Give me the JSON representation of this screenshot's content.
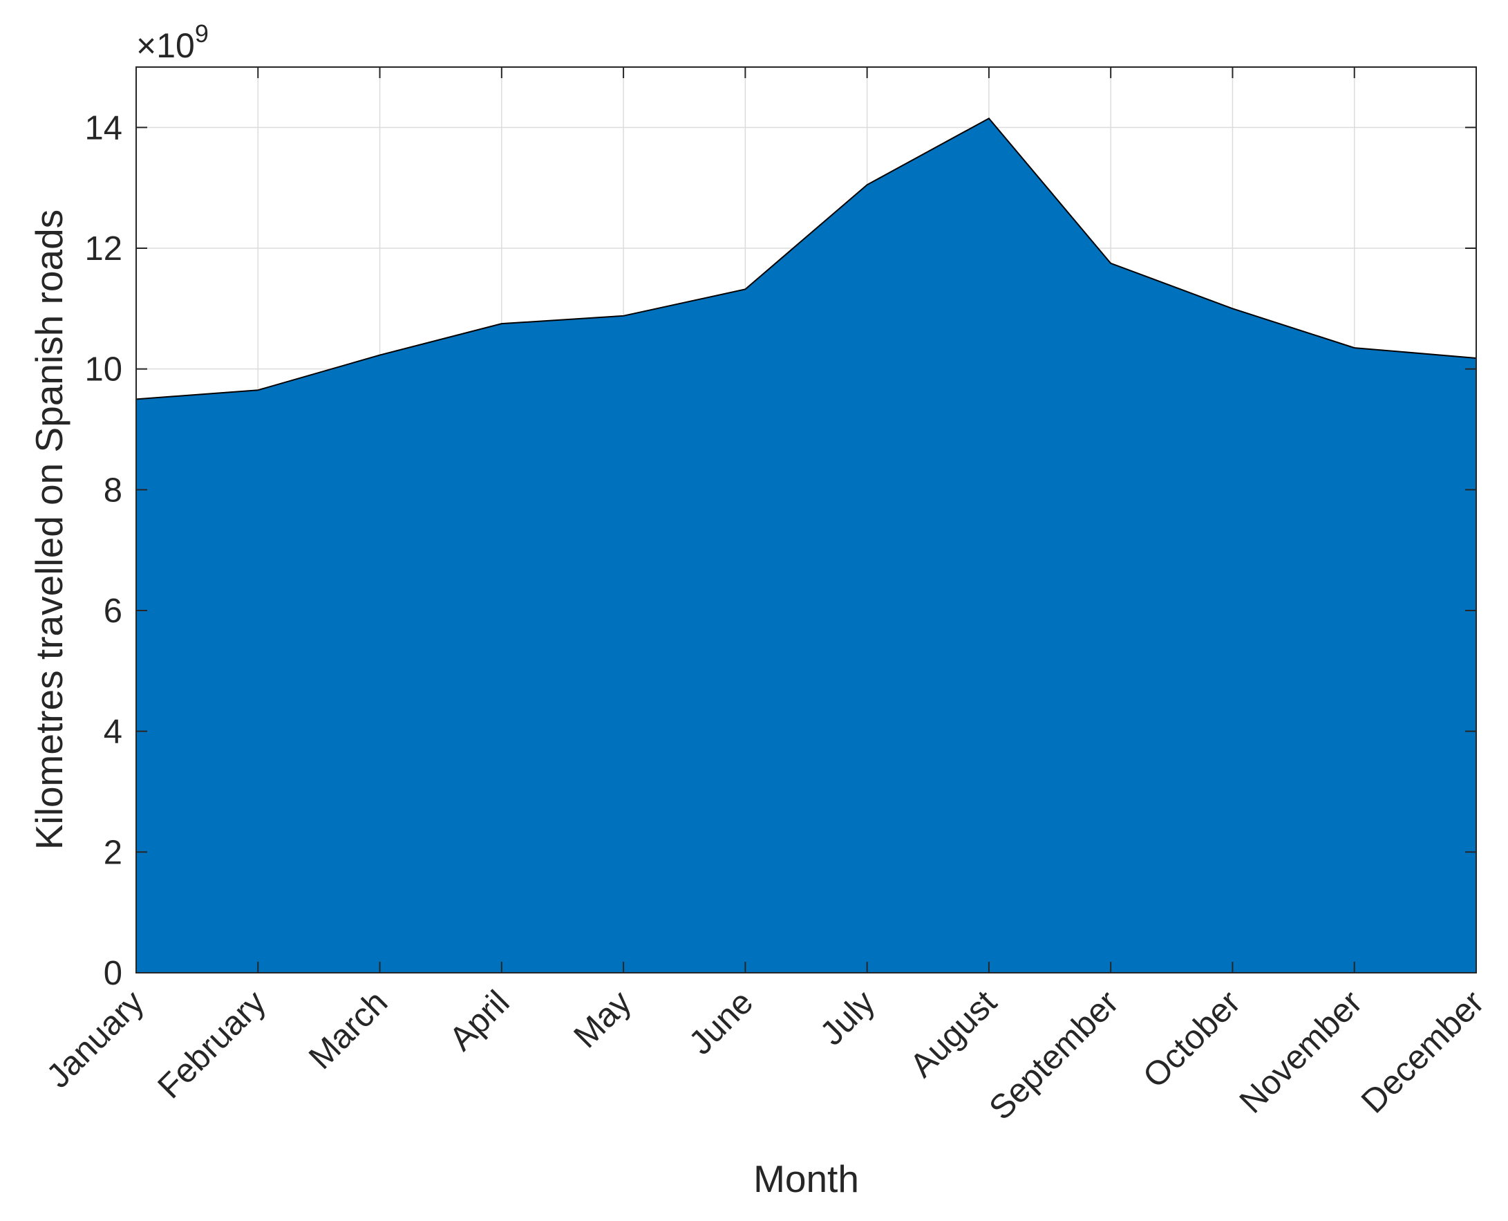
{
  "chart_data": {
    "type": "area",
    "title": "",
    "xlabel": "Month",
    "ylabel": "Kilometres travelled on Spanish roads",
    "y_exponent_label": "×10",
    "y_exponent_power": "9",
    "y_multiplier": 1000000000,
    "categories": [
      "January",
      "February",
      "March",
      "April",
      "May",
      "June",
      "July",
      "August",
      "September",
      "October",
      "November",
      "December"
    ],
    "values": [
      9.5,
      9.65,
      10.23,
      10.75,
      10.88,
      11.32,
      13.05,
      14.15,
      11.75,
      11.0,
      10.35,
      10.18
    ],
    "ylim": [
      0,
      15
    ],
    "yticks": [
      0,
      2,
      4,
      6,
      8,
      10,
      12,
      14
    ],
    "ytick_labels": [
      "0",
      "2",
      "4",
      "6",
      "8",
      "10",
      "12",
      "14"
    ],
    "grid": true,
    "fill_color": "#0072BD",
    "edge_color": "#000000"
  }
}
